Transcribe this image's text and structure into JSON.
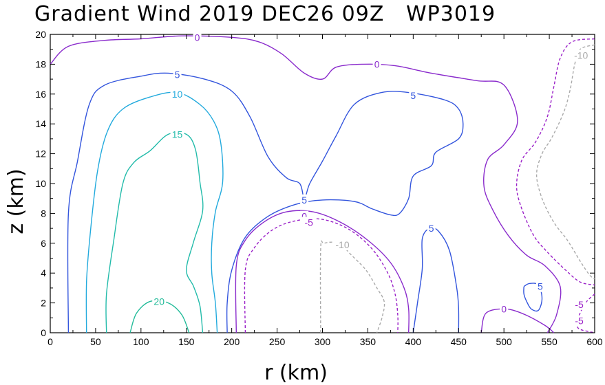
{
  "chart_data": {
    "type": "contour",
    "title": "Gradient Wind 2019 DEC26 09Z   WP3019",
    "xlabel": "r (km)",
    "ylabel": "z (km)",
    "xlim": [
      0,
      600
    ],
    "ylim": [
      0,
      20
    ],
    "x_ticks": [
      "0",
      "50",
      "100",
      "150",
      "200",
      "250",
      "300",
      "350",
      "400",
      "450",
      "500",
      "550",
      "600"
    ],
    "y_ticks": [
      "0",
      "2",
      "4",
      "6",
      "8",
      "10",
      "12",
      "14",
      "16",
      "18",
      "20"
    ],
    "grid": false,
    "contour_colors": {
      "-10": "#aaaaaa",
      "-5": "#9a1fc8",
      "0": "#8a2bcc",
      "5": "#3355dd",
      "10": "#22aadd",
      "15": "#22bbaa",
      "20": "#22bb99"
    },
    "contours": [
      {
        "level": "0",
        "dashed": false,
        "points": [
          [
            0,
            18
          ],
          [
            20,
            19.2
          ],
          [
            60,
            19.6
          ],
          [
            100,
            19.7
          ],
          [
            145,
            19.9
          ],
          [
            200,
            19.8
          ],
          [
            230,
            19.5
          ],
          [
            255,
            18.7
          ],
          [
            280,
            17.4
          ],
          [
            300,
            17.0
          ],
          [
            315,
            17.8
          ],
          [
            345,
            18.0
          ],
          [
            380,
            17.9
          ],
          [
            420,
            17.4
          ],
          [
            470,
            16.9
          ],
          [
            500,
            16.6
          ],
          [
            515,
            14.2
          ],
          [
            500,
            12.6
          ],
          [
            482,
            11.6
          ],
          [
            478,
            9.8
          ],
          [
            488,
            8.2
          ],
          [
            505,
            6.5
          ],
          [
            525,
            5.2
          ],
          [
            545,
            4.5
          ],
          [
            562,
            3.1
          ],
          [
            558,
            1.2
          ],
          [
            548,
            0
          ]
        ]
      },
      {
        "level": "0",
        "dashed": false,
        "points": [
          [
            205,
            0
          ],
          [
            205,
            4.5
          ],
          [
            215,
            6.2
          ],
          [
            235,
            7.4
          ],
          [
            260,
            8.1
          ],
          [
            290,
            8.1
          ],
          [
            320,
            7.4
          ],
          [
            350,
            6.2
          ],
          [
            375,
            4.7
          ],
          [
            390,
            3.0
          ],
          [
            395,
            1.6
          ],
          [
            395,
            0
          ]
        ]
      },
      {
        "level": "0",
        "dashed": false,
        "points": [
          [
            475,
            0
          ],
          [
            480,
            1.3
          ],
          [
            500,
            1.6
          ],
          [
            520,
            1.3
          ],
          [
            545,
            0.5
          ],
          [
            555,
            0
          ]
        ]
      },
      {
        "level": "-5",
        "dashed": true,
        "points": [
          [
            215,
            0
          ],
          [
            215,
            4.2
          ],
          [
            225,
            5.7
          ],
          [
            245,
            6.9
          ],
          [
            270,
            7.5
          ],
          [
            300,
            7.6
          ],
          [
            330,
            6.9
          ],
          [
            355,
            5.6
          ],
          [
            372,
            4.0
          ],
          [
            380,
            2.6
          ],
          [
            383,
            1.2
          ],
          [
            383,
            0
          ]
        ]
      },
      {
        "level": "-5",
        "dashed": true,
        "points": [
          [
            600,
            19.7
          ],
          [
            575,
            19.5
          ],
          [
            562,
            18.4
          ],
          [
            555,
            16.5
          ],
          [
            548,
            14.5
          ],
          [
            535,
            12.8
          ],
          [
            520,
            11.6
          ],
          [
            514,
            10.0
          ],
          [
            518,
            8.6
          ],
          [
            532,
            6.6
          ],
          [
            548,
            5.4
          ],
          [
            568,
            4.2
          ],
          [
            584,
            3.4
          ],
          [
            600,
            3.2
          ]
        ]
      },
      {
        "level": "-5",
        "dashed": true,
        "points": [
          [
            600,
            2.6
          ],
          [
            590,
            2.0
          ],
          [
            582,
            1.0
          ],
          [
            582,
            0.3
          ],
          [
            600,
            0
          ]
        ]
      },
      {
        "level": "-10",
        "dashed": true,
        "points": [
          [
            298,
            0
          ],
          [
            298,
            5.6
          ],
          [
            302,
            6.0
          ],
          [
            318,
            6.0
          ],
          [
            332,
            5.2
          ],
          [
            348,
            4.2
          ],
          [
            360,
            3.0
          ],
          [
            368,
            2.1
          ],
          [
            366,
            1.1
          ],
          [
            360,
            0
          ]
        ]
      },
      {
        "level": "-10",
        "dashed": true,
        "points": [
          [
            600,
            19.3
          ],
          [
            584,
            19.0
          ],
          [
            578,
            18.0
          ],
          [
            573,
            16.3
          ],
          [
            566,
            14.8
          ],
          [
            553,
            13.1
          ],
          [
            542,
            12.0
          ],
          [
            536,
            10.6
          ],
          [
            542,
            9.0
          ],
          [
            555,
            7.4
          ],
          [
            570,
            6.2
          ],
          [
            584,
            4.8
          ],
          [
            594,
            3.9
          ],
          [
            600,
            3.6
          ]
        ]
      },
      {
        "level": "5",
        "dashed": false,
        "points": [
          [
            20,
            0
          ],
          [
            20,
            8
          ],
          [
            30,
            11.5
          ],
          [
            43,
            15.3
          ],
          [
            60,
            16.6
          ],
          [
            100,
            17.2
          ],
          [
            130,
            17.4
          ],
          [
            170,
            17.0
          ],
          [
            200,
            16.2
          ],
          [
            220,
            14.5
          ],
          [
            240,
            11.8
          ],
          [
            260,
            10.4
          ],
          [
            275,
            10.0
          ],
          [
            280,
            9.0
          ],
          [
            286,
            10.0
          ],
          [
            300,
            11.5
          ],
          [
            315,
            13.2
          ],
          [
            335,
            15.3
          ],
          [
            365,
            16.1
          ],
          [
            395,
            16.1
          ],
          [
            435,
            15.6
          ],
          [
            450,
            15.0
          ],
          [
            455,
            14.0
          ],
          [
            450,
            13.0
          ],
          [
            425,
            12.1
          ],
          [
            420,
            11.2
          ],
          [
            400,
            10.5
          ],
          [
            395,
            9.0
          ],
          [
            385,
            8.0
          ],
          [
            375,
            7.9
          ],
          [
            355,
            8.3
          ],
          [
            335,
            8.8
          ],
          [
            300,
            8.9
          ],
          [
            270,
            8.6
          ],
          [
            240,
            7.8
          ],
          [
            215,
            6.4
          ],
          [
            200,
            4.2
          ],
          [
            195,
            2.0
          ],
          [
            195,
            0
          ]
        ]
      },
      {
        "level": "5",
        "dashed": false,
        "points": [
          [
            400,
            0
          ],
          [
            405,
            2.1
          ],
          [
            410,
            4.3
          ],
          [
            410,
            6.3
          ],
          [
            418,
            7.0
          ],
          [
            428,
            6.8
          ],
          [
            440,
            5.5
          ],
          [
            448,
            3.0
          ],
          [
            450,
            1.6
          ],
          [
            450,
            0
          ]
        ]
      },
      {
        "level": "5",
        "dashed": false,
        "points": [
          [
            522,
            3.1
          ],
          [
            528,
            3.3
          ],
          [
            538,
            3.2
          ],
          [
            542,
            2.3
          ],
          [
            538,
            1.5
          ],
          [
            530,
            1.6
          ],
          [
            525,
            2.1
          ],
          [
            522,
            2.6
          ],
          [
            522,
            3.1
          ]
        ]
      },
      {
        "level": "10",
        "dashed": false,
        "points": [
          [
            40,
            0
          ],
          [
            40,
            3.4
          ],
          [
            44,
            6.6
          ],
          [
            52,
            10.8
          ],
          [
            63,
            13.5
          ],
          [
            80,
            15.0
          ],
          [
            110,
            15.8
          ],
          [
            140,
            16.1
          ],
          [
            165,
            15.3
          ],
          [
            180,
            14.2
          ],
          [
            188,
            12.7
          ],
          [
            190,
            10.1
          ],
          [
            182,
            8.1
          ],
          [
            178,
            6.0
          ],
          [
            178,
            4.0
          ],
          [
            182,
            2.0
          ],
          [
            184,
            0
          ]
        ]
      },
      {
        "level": "15",
        "dashed": false,
        "points": [
          [
            62,
            0
          ],
          [
            62,
            2.6
          ],
          [
            70,
            6.2
          ],
          [
            80,
            10.0
          ],
          [
            92,
            11.4
          ],
          [
            110,
            12.2
          ],
          [
            130,
            13.3
          ],
          [
            150,
            13.3
          ],
          [
            160,
            12.3
          ],
          [
            165,
            10.1
          ],
          [
            168,
            8.2
          ],
          [
            158,
            6.1
          ],
          [
            150,
            4.2
          ],
          [
            158,
            3.1
          ],
          [
            165,
            1.8
          ],
          [
            168,
            0
          ]
        ]
      },
      {
        "level": "20",
        "dashed": false,
        "points": [
          [
            88,
            0
          ],
          [
            95,
            1.3
          ],
          [
            110,
            2.1
          ],
          [
            130,
            2.0
          ],
          [
            145,
            1.2
          ],
          [
            153,
            0
          ]
        ]
      }
    ],
    "contour_labels": [
      {
        "text": "0",
        "x": 162,
        "y": 19.8,
        "level": "0"
      },
      {
        "text": "0",
        "x": 360,
        "y": 18.0,
        "level": "0"
      },
      {
        "text": "0",
        "x": 280,
        "y": 7.8,
        "level": "0"
      },
      {
        "text": "0",
        "x": 500,
        "y": 1.6,
        "level": "0"
      },
      {
        "text": "5",
        "x": 140,
        "y": 17.3,
        "level": "5"
      },
      {
        "text": "5",
        "x": 400,
        "y": 15.9,
        "level": "5"
      },
      {
        "text": "5",
        "x": 280,
        "y": 8.9,
        "level": "5"
      },
      {
        "text": "5",
        "x": 420,
        "y": 7.0,
        "level": "5"
      },
      {
        "text": "5",
        "x": 540,
        "y": 3.1,
        "level": "5"
      },
      {
        "text": "10",
        "x": 140,
        "y": 16.0,
        "level": "10"
      },
      {
        "text": "15",
        "x": 140,
        "y": 13.3,
        "level": "15"
      },
      {
        "text": "20",
        "x": 120,
        "y": 2.1,
        "level": "20"
      },
      {
        "text": "-5",
        "x": 285,
        "y": 7.4,
        "level": "-5"
      },
      {
        "text": "-5",
        "x": 583,
        "y": 1.9,
        "level": "-5"
      },
      {
        "text": "-5",
        "x": 583,
        "y": 0.8,
        "level": "-5"
      },
      {
        "text": "-10",
        "x": 322,
        "y": 5.9,
        "level": "-10"
      },
      {
        "text": "-10",
        "x": 585,
        "y": 18.6,
        "level": "-10"
      }
    ]
  }
}
